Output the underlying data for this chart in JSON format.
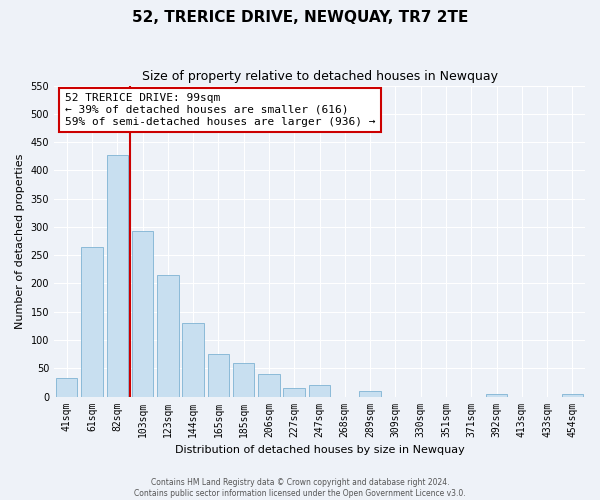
{
  "title": "52, TRERICE DRIVE, NEWQUAY, TR7 2TE",
  "subtitle": "Size of property relative to detached houses in Newquay",
  "xlabel": "Distribution of detached houses by size in Newquay",
  "ylabel": "Number of detached properties",
  "bar_labels": [
    "41sqm",
    "61sqm",
    "82sqm",
    "103sqm",
    "123sqm",
    "144sqm",
    "165sqm",
    "185sqm",
    "206sqm",
    "227sqm",
    "247sqm",
    "268sqm",
    "289sqm",
    "309sqm",
    "330sqm",
    "351sqm",
    "371sqm",
    "392sqm",
    "413sqm",
    "433sqm",
    "454sqm"
  ],
  "bar_values": [
    32,
    265,
    428,
    293,
    215,
    130,
    76,
    59,
    40,
    15,
    21,
    0,
    10,
    0,
    0,
    0,
    0,
    5,
    0,
    0,
    5
  ],
  "bar_color": "#c8dff0",
  "bar_edge_color": "#7fb3d3",
  "vline_x_index": 2,
  "vline_color": "#cc0000",
  "annotation_title": "52 TRERICE DRIVE: 99sqm",
  "annotation_line1": "← 39% of detached houses are smaller (616)",
  "annotation_line2": "59% of semi-detached houses are larger (936) →",
  "annotation_box_color": "white",
  "annotation_box_edge": "#cc0000",
  "ylim": [
    0,
    550
  ],
  "yticks": [
    0,
    50,
    100,
    150,
    200,
    250,
    300,
    350,
    400,
    450,
    500,
    550
  ],
  "footer1": "Contains HM Land Registry data © Crown copyright and database right 2024.",
  "footer2": "Contains public sector information licensed under the Open Government Licence v3.0.",
  "bg_color": "#eef2f8",
  "grid_color": "#ffffff",
  "title_fontsize": 11,
  "subtitle_fontsize": 9,
  "xlabel_fontsize": 8,
  "ylabel_fontsize": 8,
  "tick_fontsize": 7,
  "annot_fontsize": 8
}
